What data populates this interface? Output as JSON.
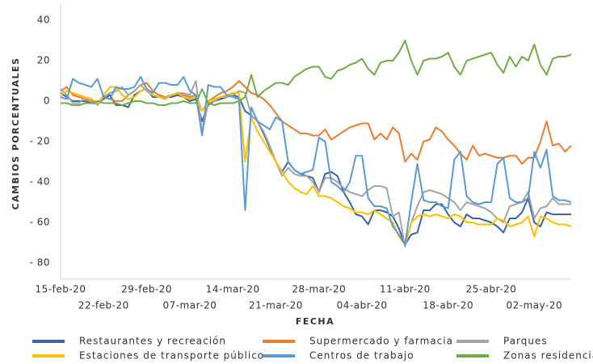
{
  "chart_data": {
    "type": "line",
    "x_label": "FECHA",
    "y_label": "CAMBIOS PORCENTUALES",
    "x": [
      "15-feb-20",
      "16-feb-20",
      "17-feb-20",
      "18-feb-20",
      "19-feb-20",
      "20-feb-20",
      "21-feb-20",
      "22-feb-20",
      "23-feb-20",
      "24-feb-20",
      "25-feb-20",
      "26-feb-20",
      "27-feb-20",
      "28-feb-20",
      "29-feb-20",
      "01-mar-20",
      "02-mar-20",
      "03-mar-20",
      "04-mar-20",
      "05-mar-20",
      "06-mar-20",
      "07-mar-20",
      "08-mar-20",
      "09-mar-20",
      "10-mar-20",
      "11-mar-20",
      "12-mar-20",
      "13-mar-20",
      "14-mar-20",
      "15-mar-20",
      "16-mar-20",
      "17-mar-20",
      "18-mar-20",
      "19-mar-20",
      "20-mar-20",
      "21-mar-20",
      "22-mar-20",
      "23-mar-20",
      "24-mar-20",
      "25-mar-20",
      "26-mar-20",
      "27-mar-20",
      "28-mar-20",
      "29-mar-20",
      "30-mar-20",
      "31-mar-20",
      "01-abr-20",
      "02-abr-20",
      "03-abr-20",
      "04-abr-20",
      "05-abr-20",
      "06-abr-20",
      "07-abr-20",
      "08-abr-20",
      "09-abr-20",
      "10-abr-20",
      "11-abr-20",
      "12-abr-20",
      "13-abr-20",
      "14-abr-20",
      "15-abr-20",
      "16-abr-20",
      "17-abr-20",
      "18-abr-20",
      "19-abr-20",
      "20-abr-20",
      "21-abr-20",
      "22-abr-20",
      "23-abr-20",
      "24-abr-20",
      "25-abr-20",
      "26-abr-20",
      "27-abr-20",
      "28-abr-20",
      "29-abr-20",
      "30-abr-20",
      "01-may-20",
      "02-may-20",
      "03-may-20",
      "04-may-20",
      "05-may-20",
      "06-may-20",
      "07-may-20",
      "08-may-20"
    ],
    "ylim": [
      -88,
      48
    ],
    "yticks": [
      {
        "value": -80,
        "label": "- 80"
      },
      {
        "value": -60,
        "label": "- 60"
      },
      {
        "value": -40,
        "label": "- 40"
      },
      {
        "value": -20,
        "label": "- 20"
      },
      0,
      20,
      40
    ],
    "grid": false,
    "legend": "bottom",
    "series": [
      {
        "name": "Restaurantes y recreación",
        "color": "#3b64a9",
        "values": [
          4,
          2,
          0,
          0,
          0,
          -1,
          -1,
          1,
          3,
          -2,
          -2,
          -3,
          3,
          5,
          6,
          2,
          2,
          2,
          2,
          3,
          2,
          0,
          1,
          -10,
          -2,
          0,
          1,
          2,
          3,
          2,
          -5,
          -7,
          -10,
          -16,
          -23,
          -30,
          -35,
          -30,
          -34,
          -36,
          -37,
          -38,
          -45,
          -36,
          -35,
          -37,
          -45,
          -50,
          -56,
          -57,
          -61,
          -54,
          -54,
          -55,
          -57,
          -63,
          -71,
          -66,
          -65,
          -54,
          -54,
          -51,
          -51,
          -56,
          -60,
          -62,
          -56,
          -58,
          -58,
          -59,
          -60,
          -62,
          -65,
          -58,
          -58,
          -55,
          -48,
          -60,
          -62,
          -55,
          -56,
          -56,
          -56,
          -56
        ]
      },
      {
        "name": "Supermercado y farmacia",
        "color": "#ed7d31",
        "values": [
          5,
          7,
          3,
          2,
          1,
          0,
          -1,
          2,
          1,
          0,
          0,
          3,
          5,
          8,
          9,
          5,
          3,
          2,
          3,
          4,
          3,
          2,
          3,
          -5,
          0,
          2,
          4,
          5,
          7,
          10,
          7,
          4,
          3,
          1,
          -2,
          -6,
          -10,
          -12,
          -14,
          -16,
          -16,
          -17,
          -17,
          -14,
          -19,
          -17,
          -15,
          -13,
          -12,
          -11,
          -11,
          -19,
          -16,
          -19,
          -13,
          -16,
          -30,
          -26,
          -29,
          -20,
          -19,
          -13,
          -15,
          -19,
          -22,
          -26,
          -29,
          -22,
          -27,
          -26,
          -27,
          -28,
          -28,
          -27,
          -27,
          -31,
          -28,
          -28,
          -20,
          -10,
          -22,
          -21,
          -25,
          -22
        ]
      },
      {
        "name": "Parques",
        "color": "#a5a5a5",
        "values": [
          6,
          3,
          -1,
          -1,
          2,
          1,
          -2,
          2,
          4,
          5,
          7,
          3,
          5,
          8,
          5,
          3,
          2,
          2,
          3,
          4,
          4,
          3,
          10,
          -16,
          -1,
          0,
          2,
          2,
          3,
          5,
          4,
          -7,
          -10,
          -15,
          -22,
          -30,
          -37,
          -33,
          -36,
          -37,
          -37,
          -40,
          -45,
          -38,
          -38,
          -40,
          -43,
          -45,
          -46,
          -47,
          -44,
          -42,
          -42,
          -43,
          -57,
          -55,
          -72,
          -60,
          -52,
          -45,
          -44,
          -45,
          -46,
          -48,
          -50,
          -54,
          -50,
          -51,
          -52,
          -53,
          -55,
          -58,
          -60,
          -52,
          -51,
          -50,
          -45,
          -58,
          -53,
          -52,
          -48,
          -51,
          -51,
          -51
        ]
      },
      {
        "name": "Estaciones de transporte público",
        "color": "#ffc000",
        "values": [
          3,
          5,
          4,
          3,
          2,
          1,
          -1,
          3,
          7,
          7,
          3,
          1,
          2,
          5,
          6,
          3,
          2,
          1,
          3,
          4,
          2,
          1,
          2,
          -5,
          0,
          1,
          2,
          3,
          4,
          4,
          -30,
          -8,
          -15,
          -20,
          -25,
          -30,
          -35,
          -40,
          -43,
          -45,
          -46,
          -42,
          -47,
          -47,
          -48,
          -50,
          -52,
          -53,
          -55,
          -55,
          -56,
          -54,
          -56,
          -58,
          -60,
          -67,
          -71,
          -60,
          -57,
          -56,
          -57,
          -56,
          -57,
          -58,
          -56,
          -57,
          -60,
          -60,
          -61,
          -61,
          -61,
          -58,
          -59,
          -62,
          -61,
          -60,
          -57,
          -67,
          -57,
          -58,
          -60,
          -61,
          -61,
          -62
        ]
      },
      {
        "name": "Centros de trabajo",
        "color": "#5b9bd5",
        "values": [
          2,
          1,
          11,
          9,
          8,
          7,
          11,
          2,
          1,
          7,
          6,
          6,
          7,
          12,
          6,
          4,
          9,
          9,
          8,
          8,
          12,
          5,
          3,
          -17,
          8,
          7,
          7,
          3,
          2,
          1,
          -54,
          -3,
          -10,
          -12,
          -14,
          -8,
          -10,
          -30,
          -34,
          -36,
          -35,
          -34,
          -18,
          -20,
          -40,
          -42,
          -45,
          -40,
          -27,
          -27,
          -48,
          -52,
          -52,
          -53,
          -62,
          -66,
          -71,
          -50,
          -31,
          -49,
          -50,
          -50,
          -52,
          -53,
          -29,
          -25,
          -47,
          -50,
          -51,
          -50,
          -50,
          -31,
          -28,
          -48,
          -50,
          -50,
          -48,
          -25,
          -33,
          -24,
          -47,
          -49,
          -49,
          -50
        ]
      },
      {
        "name": "Zonas residenciales",
        "color": "#70ad47",
        "values": [
          -1,
          -1,
          -2,
          -2,
          -1,
          -1,
          0,
          -1,
          -1,
          -1,
          -2,
          -1,
          0,
          0,
          -1,
          -1,
          -2,
          -2,
          -1,
          -1,
          0,
          -1,
          -1,
          6,
          -1,
          -2,
          -1,
          -1,
          -1,
          0,
          2,
          13,
          2,
          5,
          7,
          9,
          9,
          8,
          12,
          14,
          16,
          17,
          17,
          12,
          11,
          15,
          16,
          18,
          19,
          21,
          16,
          13,
          19,
          20,
          20,
          24,
          30,
          20,
          13,
          20,
          21,
          21,
          22,
          24,
          17,
          13,
          20,
          21,
          22,
          23,
          24,
          18,
          14,
          22,
          17,
          22,
          20,
          28,
          18,
          13,
          21,
          22,
          22,
          23
        ]
      }
    ]
  }
}
